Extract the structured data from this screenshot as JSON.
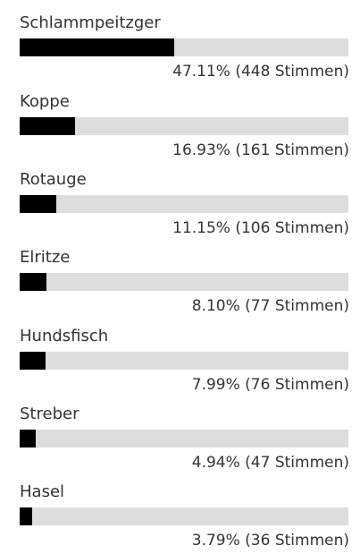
{
  "poll": {
    "items": [
      {
        "label": "Schlammpeitzger",
        "percent": 47.11,
        "result": "47.11% (448 Stimmen)"
      },
      {
        "label": "Koppe",
        "percent": 16.93,
        "result": "16.93% (161 Stimmen)"
      },
      {
        "label": "Rotauge",
        "percent": 11.15,
        "result": "11.15% (106 Stimmen)"
      },
      {
        "label": "Elritze",
        "percent": 8.1,
        "result": "8.10% (77 Stimmen)"
      },
      {
        "label": "Hundsfisch",
        "percent": 7.99,
        "result": "7.99% (76 Stimmen)"
      },
      {
        "label": "Streber",
        "percent": 4.94,
        "result": "4.94% (47 Stimmen)"
      },
      {
        "label": "Hasel",
        "percent": 3.79,
        "result": "3.79% (36 Stimmen)"
      }
    ]
  },
  "colors": {
    "bar_fill": "#000000",
    "bar_track": "#dddddd",
    "text": "#333333"
  }
}
